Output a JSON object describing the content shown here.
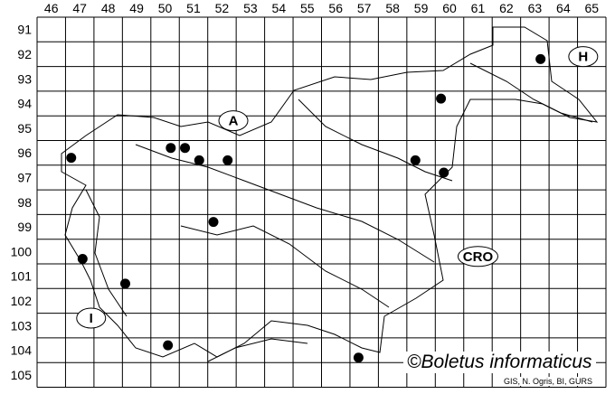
{
  "map": {
    "columns": [
      "46",
      "47",
      "48",
      "49",
      "50",
      "51",
      "52",
      "53",
      "54",
      "55",
      "56",
      "57",
      "58",
      "59",
      "60",
      "61",
      "62",
      "63",
      "64",
      "65"
    ],
    "rows": [
      "91",
      "92",
      "93",
      "94",
      "95",
      "96",
      "97",
      "98",
      "99",
      "100",
      "101",
      "102",
      "103",
      "104",
      "105"
    ],
    "country_labels": [
      {
        "text": "A",
        "col": 52.4,
        "row": 94.7
      },
      {
        "text": "H",
        "col": 64.7,
        "row": 92.1
      },
      {
        "text": "CRO",
        "col": 61.0,
        "row": 100.2
      },
      {
        "text": "I",
        "col": 47.4,
        "row": 102.7
      }
    ],
    "records": [
      {
        "col": 46.7,
        "row": 96.2
      },
      {
        "col": 50.2,
        "row": 95.8
      },
      {
        "col": 50.7,
        "row": 95.8
      },
      {
        "col": 51.2,
        "row": 96.3
      },
      {
        "col": 52.2,
        "row": 96.3
      },
      {
        "col": 51.7,
        "row": 98.8
      },
      {
        "col": 47.1,
        "row": 100.3
      },
      {
        "col": 48.6,
        "row": 101.3
      },
      {
        "col": 50.1,
        "row": 103.8
      },
      {
        "col": 56.8,
        "row": 104.3
      },
      {
        "col": 58.8,
        "row": 96.3
      },
      {
        "col": 59.7,
        "row": 93.8
      },
      {
        "col": 59.8,
        "row": 96.8
      },
      {
        "col": 63.2,
        "row": 92.2
      }
    ],
    "dot_color": "#000000",
    "grid_color": "#000000"
  },
  "copyright": "©Boletus informaticus",
  "credit": "GIS, N. Ogris, BI, GURS"
}
